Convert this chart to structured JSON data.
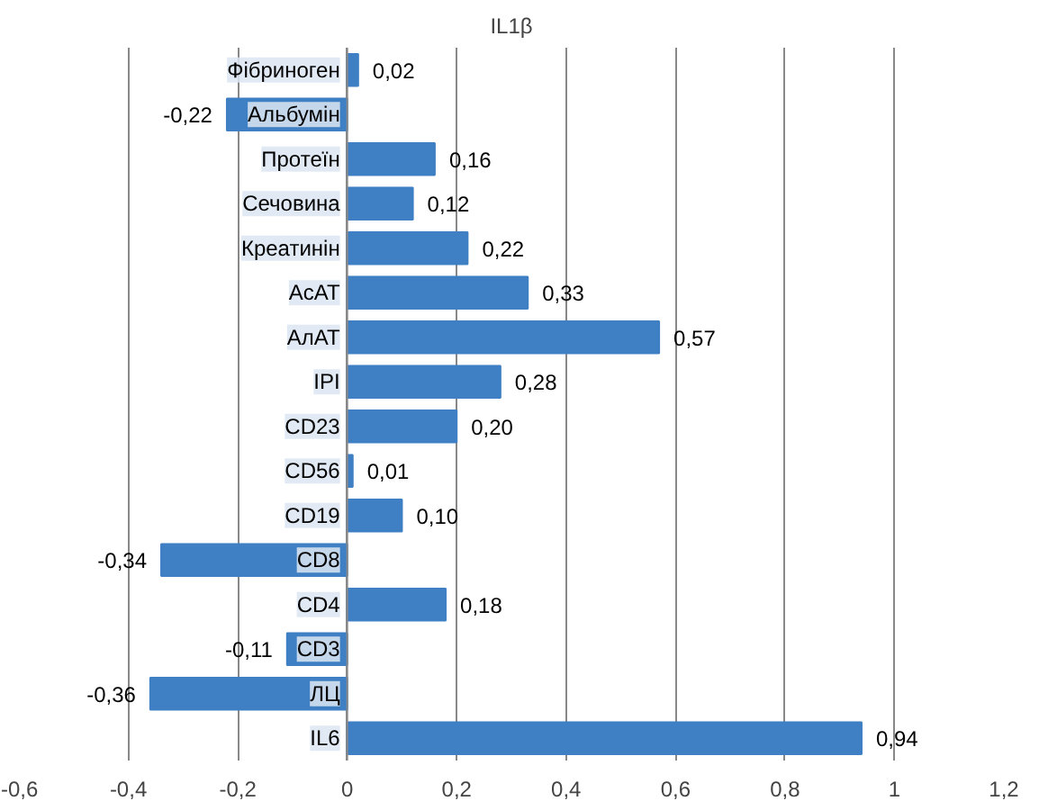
{
  "chart_data": {
    "type": "bar",
    "orientation": "horizontal",
    "title": "IL1β",
    "categories": [
      "Фібриноген",
      "Альбумін",
      "Протеїн",
      "Сечовина",
      "Креатинін",
      "АсАТ",
      "АлАТ",
      "IPI",
      "CD23",
      "CD56",
      "CD19",
      "CD8",
      "CD4",
      "CD3",
      "ЛЦ",
      "IL6"
    ],
    "values": [
      0.02,
      -0.22,
      0.16,
      0.12,
      0.22,
      0.33,
      0.57,
      0.28,
      0.2,
      0.01,
      0.1,
      -0.34,
      0.18,
      -0.11,
      -0.36,
      0.94
    ],
    "value_labels": [
      "0,02",
      "-0,22",
      "0,16",
      "0,12",
      "0,22",
      "0,33",
      "0,57",
      "0,28",
      "0,20",
      "0,01",
      "0,10",
      "-0,34",
      "0,18",
      "-0,11",
      "-0,36",
      "0,94"
    ],
    "color": "#3f7fc3",
    "xlim": [
      -0.6,
      1.2
    ],
    "xticks": [
      {
        "value": -0.6,
        "label": "-0,6"
      },
      {
        "value": -0.4,
        "label": "-0,4"
      },
      {
        "value": -0.2,
        "label": "-0,2"
      },
      0,
      {
        "value": 0.2,
        "label": "0,2"
      },
      {
        "value": 0.4,
        "label": "0,4"
      },
      {
        "value": 0.6,
        "label": "0,6"
      },
      {
        "value": 0.8,
        "label": "0,8"
      },
      1,
      {
        "value": 1.2,
        "label": "1,2"
      }
    ],
    "grid": "x"
  }
}
